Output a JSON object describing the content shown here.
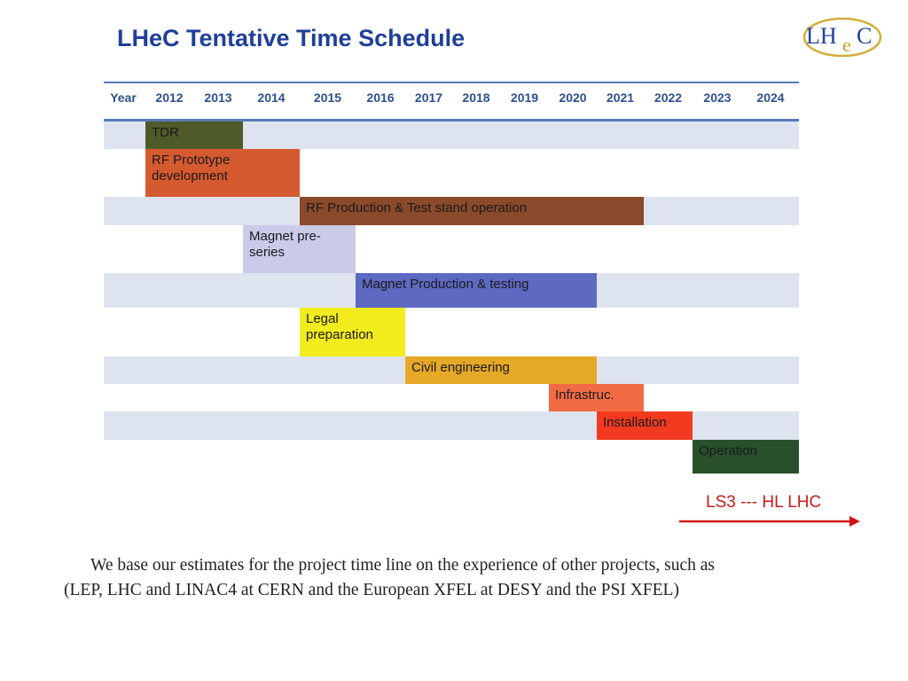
{
  "title": "LHeC Tentative Time Schedule",
  "logo": {
    "text_lh": "LH",
    "text_e": "e",
    "text_c": "C"
  },
  "header": {
    "label": "Year",
    "years": [
      "2012",
      "2013",
      "2014",
      "2015",
      "2016",
      "2017",
      "2018",
      "2019",
      "2020",
      "2021",
      "2022",
      "2023",
      "2024"
    ]
  },
  "tasks": [
    {
      "label": "TDR",
      "start": 2012,
      "end": 2013,
      "color": "#4f5a2a"
    },
    {
      "label": "RF Prototype\ndevelopment",
      "start": 2012,
      "end": 2014,
      "color": "#d65a30"
    },
    {
      "label": "RF Production  & Test stand operation",
      "start": 2015,
      "end": 2021,
      "color": "#8b4a2b"
    },
    {
      "label": "Magnet pre-\nseries",
      "start": 2014,
      "end": 2015,
      "color": "#c9cbe9"
    },
    {
      "label": "Magnet Production & testing",
      "start": 2016,
      "end": 2020,
      "color": "#5e69c2"
    },
    {
      "label": "Legal\npreparation",
      "start": 2015,
      "end": 2016,
      "color": "#f2eb1e"
    },
    {
      "label": "Civil engineering",
      "start": 2017,
      "end": 2020,
      "color": "#e6a827"
    },
    {
      "label": "Infrastruc.",
      "start": 2020,
      "end": 2021,
      "color": "#f26b45"
    },
    {
      "label": "Installation",
      "start": 2021,
      "end": 2022,
      "color": "#f13a1f"
    },
    {
      "label": "Operation",
      "start": 2023,
      "end": 2024,
      "color": "#28502b"
    }
  ],
  "colors": {
    "band_shaded": "#dde3ef",
    "band_plain": "#ffffff",
    "title": "#1f3f9a",
    "marker": "#d41414"
  },
  "marker": {
    "label": "LS3 --- HL LHC"
  },
  "note": {
    "line1": "We base our estimates for the project time line on the experience of other projects, such as",
    "line2": "(LEP, LHC and LINAC4 at CERN and the European XFEL at DESY and the PSI XFEL)"
  }
}
